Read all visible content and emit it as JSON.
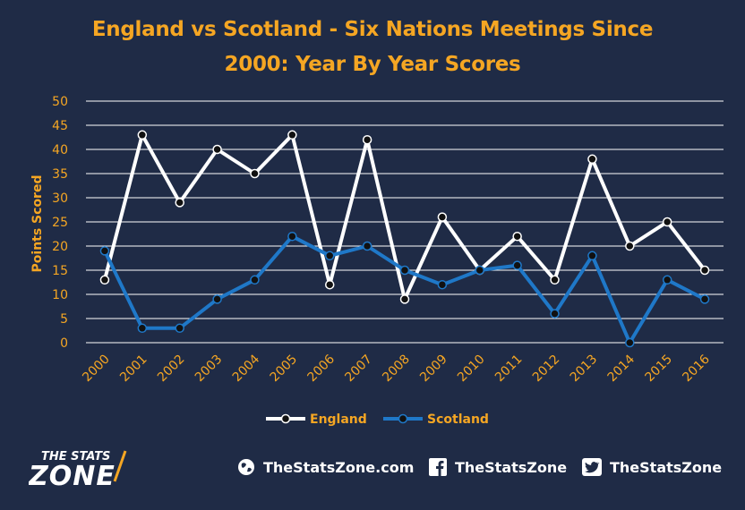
{
  "title": {
    "line1": "England vs Scotland - Six Nations Meetings Since",
    "line2": "2000: Year By Year Scores"
  },
  "colors": {
    "background": "#1f2b46",
    "title": "#f5a623",
    "england": "#ffffff",
    "scotland": "#1f78c8",
    "gridline": "#ffffff",
    "axis_text": "#f5a623"
  },
  "chart_data": {
    "type": "line",
    "title": "England vs Scotland - Six Nations Meetings Since 2000: Year By Year Scores",
    "xlabel": "",
    "ylabel": "Points Scored",
    "categories": [
      "2000",
      "2001",
      "2002",
      "2003",
      "2004",
      "2005",
      "2006",
      "2007",
      "2008",
      "2009",
      "2010",
      "2011",
      "2012",
      "2013",
      "2014",
      "2015",
      "2016"
    ],
    "ylim": [
      0,
      50
    ],
    "yticks": [
      "0",
      "5",
      "10",
      "15",
      "20",
      "25",
      "30",
      "35",
      "40",
      "45",
      "50"
    ],
    "grid": true,
    "legend_position": "bottom",
    "series": [
      {
        "name": "England",
        "color": "#ffffff",
        "values": [
          13,
          43,
          29,
          40,
          35,
          43,
          12,
          42,
          9,
          26,
          15,
          22,
          13,
          38,
          20,
          25,
          15
        ]
      },
      {
        "name": "Scotland",
        "color": "#1f78c8",
        "values": [
          19,
          3,
          3,
          9,
          13,
          22,
          18,
          20,
          15,
          12,
          15,
          16,
          6,
          18,
          0,
          13,
          9
        ]
      }
    ]
  },
  "footer": {
    "logo_line1": "THE STATS",
    "logo_line2": "ZONE",
    "website": "TheStatsZone.com",
    "facebook": "TheStatsZone",
    "twitter": "TheStatsZone",
    "website_icon": "globe-icon",
    "facebook_icon": "facebook-icon",
    "twitter_icon": "twitter-icon"
  }
}
